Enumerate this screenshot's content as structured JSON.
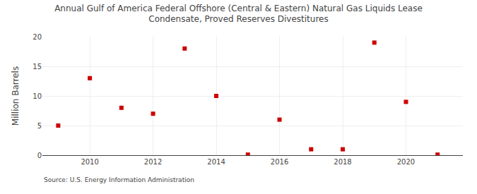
{
  "chart_data": {
    "type": "scatter",
    "title": "Annual Gulf of America Federal Offshore (Central & Eastern) Natural Gas Liquids Lease\nCondensate, Proved Reserves Divestitures",
    "ylabel": "Million Barrels",
    "source": "Source: U.S. Energy Information Administration",
    "x": [
      2009,
      2010,
      2011,
      2012,
      2013,
      2014,
      2015,
      2016,
      2017,
      2018,
      2019,
      2020,
      2021
    ],
    "values": [
      5.0,
      13.0,
      8.0,
      7.0,
      18.0,
      10.0,
      0.1,
      6.0,
      1.0,
      1.0,
      19.0,
      9.0,
      0.1
    ],
    "color": "#cc0000",
    "marker": "square",
    "grid": true,
    "xlim": [
      2008.5,
      2021.8
    ],
    "xticks": [
      2010,
      2012,
      2014,
      2016,
      2018,
      2020
    ],
    "ylim": [
      0,
      20
    ],
    "yticks": [
      0,
      5,
      10,
      15,
      20
    ]
  }
}
